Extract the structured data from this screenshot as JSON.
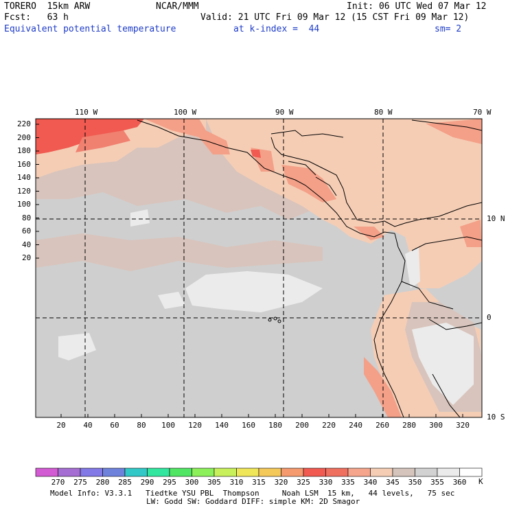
{
  "header": {
    "model": "TORERO  15km ARW",
    "center": "NCAR/MMM",
    "init": "Init: 06 UTC Wed 07 Mar 12",
    "fcst": "Fcst:   63 h",
    "valid": "Valid: 21 UTC Fri 09 Mar 12 (15 CST Fri 09 Mar 12)",
    "field": "Equivalent potential temperature",
    "level": "at k-index =  44",
    "smooth": "sm= 2"
  },
  "map": {
    "top_lon_labels": [
      "110 W",
      "100 W",
      "90 W",
      "80 W",
      "70 W"
    ],
    "right_lat_labels": [
      "10 N",
      "0",
      "10 S"
    ],
    "y_ticks": [
      "220",
      "200",
      "180",
      "160",
      "140",
      "120",
      "100",
      "80",
      "60",
      "40",
      "20"
    ],
    "x_ticks": [
      "20",
      "40",
      "60",
      "80",
      "100",
      "120",
      "140",
      "160",
      "180",
      "200",
      "220",
      "240",
      "260",
      "280",
      "300",
      "320"
    ],
    "colors": {
      "c_335": "#f08070",
      "c_330": "#f05a50",
      "c_325": "#f4a088",
      "c_340": "#f5cdb5",
      "c_345": "#d8c4bc",
      "c_350": "#cfcfcf",
      "c_355": "#ebebeb",
      "land": "#000000"
    }
  },
  "colorbar": {
    "labels": [
      "270",
      "275",
      "280",
      "285",
      "290",
      "295",
      "300",
      "305",
      "310",
      "315",
      "320",
      "325",
      "330",
      "335",
      "340",
      "345",
      "350",
      "355",
      "360"
    ],
    "unit": "K",
    "colors": [
      "#d25ad2",
      "#a56ed2",
      "#8278e6",
      "#6e82dc",
      "#32c8c8",
      "#32e6a0",
      "#50e664",
      "#8cf05a",
      "#c8f05a",
      "#f0e65a",
      "#f5c85a",
      "#f59a6e",
      "#f05a50",
      "#f07060",
      "#f5a58c",
      "#f5cdb5",
      "#d4c4bc",
      "#d2d2d2",
      "#ebebeb",
      "#ffffff"
    ]
  },
  "footer": {
    "line1": "Model Info: V3.3.1   Tiedtke YSU PBL  Thompson     Noah LSM  15 km,   44 levels,   75 sec",
    "line2": "LW: Godd SW: Goddard DIFF: simple KM: 2D Smagor"
  }
}
